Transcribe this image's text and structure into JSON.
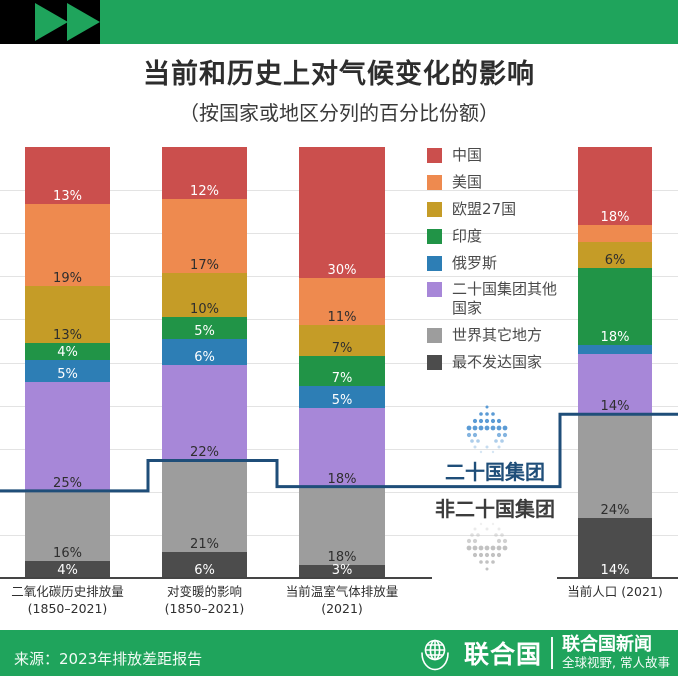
{
  "title": "当前和历史上对气候变化的影响",
  "subtitle": "（按国家或地区分列的百分比份额）",
  "colors": {
    "brand_green": "#1fa45c",
    "divider_navy": "#1f4e79",
    "grid_gray": "#e3e3e3"
  },
  "chart_data": {
    "type": "bar",
    "stacked": true,
    "value_unit": "%",
    "grid": true,
    "legend_position": "top-right",
    "ylim": [
      0,
      100
    ],
    "categories": [
      "二氧化碳历史排放量 (1850–2021)",
      "对变暖的影响 (1850–2021)",
      "当前温室气体排放量 (2021)",
      "当前人口 (2021)"
    ],
    "category_lines": [
      [
        "二氧化碳历史排放量",
        "(1850–2021)"
      ],
      [
        "对变暖的影响",
        "(1850–2021)"
      ],
      [
        "当前温室气体排放量",
        "(2021)"
      ],
      [
        "当前人口 (2021)"
      ]
    ],
    "series": [
      {
        "name": "中国",
        "color": "#cb4f4d",
        "label_color": "#ffffff",
        "values": [
          13,
          12,
          30,
          18
        ],
        "labels": [
          "13%",
          "12%",
          "30%",
          "18%"
        ]
      },
      {
        "name": "美国",
        "color": "#ee8a4f",
        "label_color": "#2e2e2e",
        "values": [
          19,
          17,
          11,
          4
        ],
        "labels": [
          "19%",
          "17%",
          "11%",
          null
        ]
      },
      {
        "name": "欧盟27国",
        "color": "#c59c27",
        "label_color": "#2e2e2e",
        "values": [
          13,
          10,
          7,
          6
        ],
        "labels": [
          "13%",
          "10%",
          "7%",
          "6%"
        ]
      },
      {
        "name": "印度",
        "color": "#219447",
        "label_color": "#ffffff",
        "values": [
          4,
          5,
          7,
          18
        ],
        "labels": [
          "4%",
          "5%",
          "7%",
          "18%"
        ]
      },
      {
        "name": "俄罗斯",
        "color": "#2d7eb5",
        "label_color": "#ffffff",
        "values": [
          5,
          6,
          5,
          2
        ],
        "labels": [
          "5%",
          "6%",
          "5%",
          null
        ]
      },
      {
        "name": "二十国集团其他国家",
        "color": "#a787d8",
        "label_color": "#2e2e2e",
        "values": [
          25,
          22,
          18,
          14
        ],
        "labels": [
          "25%",
          "22%",
          "18%",
          "14%"
        ]
      },
      {
        "name": "世界其它地方",
        "color": "#9d9d9d",
        "label_color": "#2e2e2e",
        "values": [
          16,
          21,
          18,
          24
        ],
        "labels": [
          "16%",
          "21%",
          "18%",
          "24%"
        ]
      },
      {
        "name": "最不发达国家",
        "color": "#4c4c4c",
        "label_color": "#ffffff",
        "values": [
          4,
          6,
          3,
          14
        ],
        "labels": [
          "4%",
          "6%",
          "3%",
          "14%"
        ]
      }
    ],
    "divider": {
      "above_label": "二十国集团",
      "below_label": "非二十国集团",
      "after_series_index": 5,
      "line_color": "#1f4e79"
    }
  },
  "source": "来源：2023年排放差距报告",
  "footer": {
    "org_name": "联合国",
    "outlet_name": "联合国新闻",
    "tagline": "全球视野, 常人故事",
    "background": "#1fa45c"
  }
}
